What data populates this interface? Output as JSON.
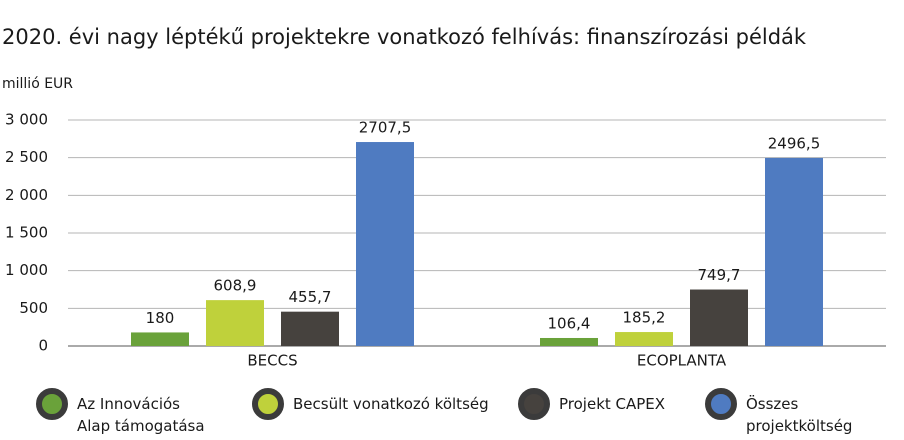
{
  "chart_data": {
    "type": "bar",
    "title": "2020. évi nagy léptékű projektekre vonatkozó felhívás: finanszírozási példák",
    "y_label": "millió EUR",
    "categories": [
      "BECCS",
      "ECOPLANTA"
    ],
    "series": [
      {
        "name": "Az Innovációs Alap támogatása",
        "color": "#6aa23a",
        "values": [
          180,
          106.4
        ],
        "value_labels": [
          "180",
          "106,4"
        ]
      },
      {
        "name": "Becsült vonatkozó költség",
        "color": "#bfd13b",
        "values": [
          608.9,
          185.2
        ],
        "value_labels": [
          "608,9",
          "185,2"
        ]
      },
      {
        "name": "Projekt CAPEX",
        "color": "#46423e",
        "values": [
          455.7,
          749.7
        ],
        "value_labels": [
          "455,7",
          "749,7"
        ]
      },
      {
        "name": "Összes projektköltség",
        "color": "#4f7bc1",
        "values": [
          2707.5,
          2496.5
        ],
        "value_labels": [
          "2707,5",
          "2496,5"
        ]
      }
    ],
    "ylim": [
      0,
      3000
    ],
    "yticks": [
      0,
      500,
      {
        "value": 1000,
        "label": "1 000"
      },
      {
        "value": 1500,
        "label": "1 500"
      },
      {
        "value": 2000,
        "label": "2 000"
      },
      {
        "value": 2500,
        "label": "2 500"
      },
      {
        "value": 3000,
        "label": "3 000"
      }
    ],
    "grid": true
  }
}
